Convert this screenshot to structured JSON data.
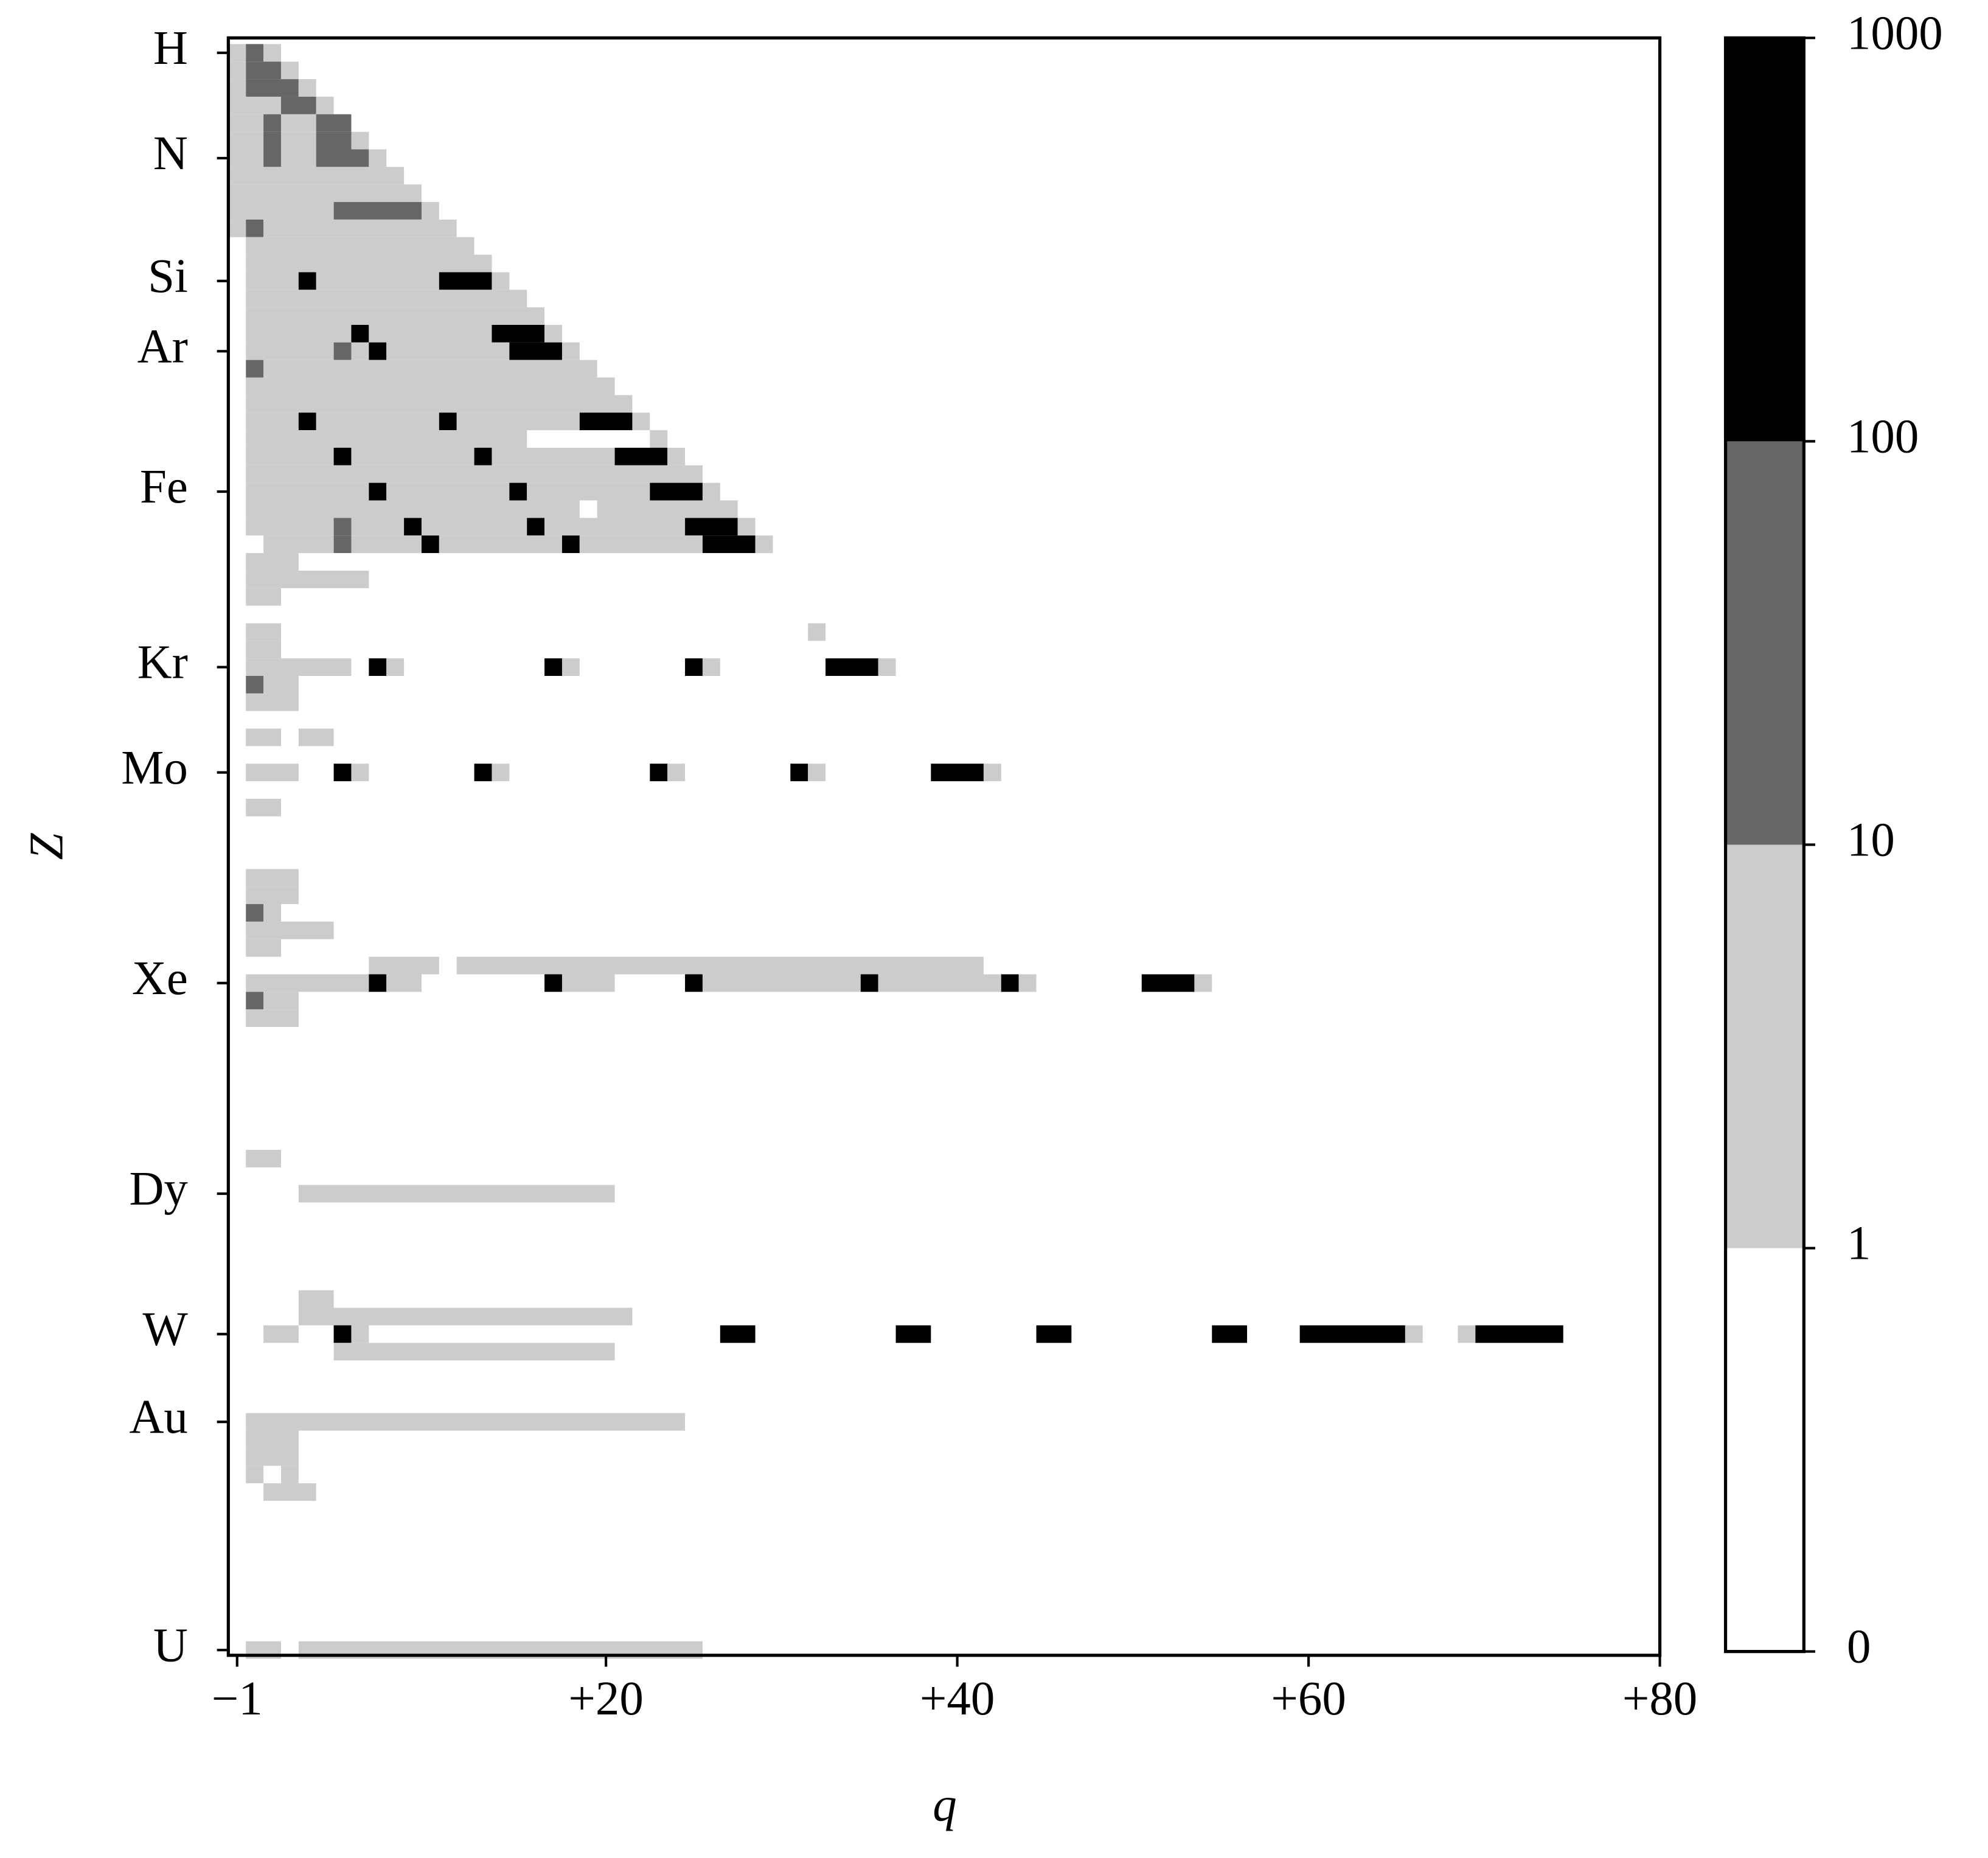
{
  "chart_data": {
    "type": "heatmap",
    "x_label": "q",
    "y_label": "Z",
    "xlim": [
      -1.5,
      80
    ],
    "ylim": [
      0.15,
      92.3
    ],
    "y_inverted": true,
    "xticks": [
      {
        "value": -1,
        "label": "−1"
      },
      {
        "value": 20,
        "label": "+20"
      },
      {
        "value": 40,
        "label": "+40"
      },
      {
        "value": 60,
        "label": "+60"
      },
      {
        "value": 80,
        "label": "+80"
      }
    ],
    "yticks": [
      {
        "value": 1,
        "label": "H"
      },
      {
        "value": 7,
        "label": "N"
      },
      {
        "value": 14,
        "label": "Si"
      },
      {
        "value": 18,
        "label": "Ar"
      },
      {
        "value": 26,
        "label": "Fe"
      },
      {
        "value": 36,
        "label": "Kr"
      },
      {
        "value": 42,
        "label": "Mo"
      },
      {
        "value": 54,
        "label": "Xe"
      },
      {
        "value": 66,
        "label": "Dy"
      },
      {
        "value": 74,
        "label": "W"
      },
      {
        "value": 79,
        "label": "Au"
      },
      {
        "value": 92,
        "label": "U"
      }
    ],
    "colorbar": {
      "boundaries": [
        0,
        1,
        10,
        100,
        1000
      ],
      "colors": [
        "#ffffff",
        "#cccccc",
        "#666666",
        "#000000"
      ]
    },
    "rows": [
      {
        "z": 1,
        "runs": [
          [
            -1,
            -1,
            5
          ],
          [
            0,
            0,
            50
          ],
          [
            1,
            1,
            5
          ]
        ]
      },
      {
        "z": 2,
        "runs": [
          [
            -1,
            -1,
            5
          ],
          [
            0,
            1,
            50
          ],
          [
            2,
            2,
            5
          ]
        ]
      },
      {
        "z": 3,
        "runs": [
          [
            -1,
            -1,
            5
          ],
          [
            0,
            2,
            50
          ],
          [
            3,
            3,
            5
          ]
        ]
      },
      {
        "z": 4,
        "runs": [
          [
            -1,
            1,
            5
          ],
          [
            2,
            3,
            50
          ],
          [
            4,
            4,
            5
          ]
        ]
      },
      {
        "z": 5,
        "runs": [
          [
            -1,
            0,
            5
          ],
          [
            1,
            1,
            50
          ],
          [
            2,
            3,
            5
          ],
          [
            4,
            5,
            50
          ]
        ]
      },
      {
        "z": 6,
        "runs": [
          [
            -1,
            0,
            5
          ],
          [
            1,
            1,
            50
          ],
          [
            2,
            3,
            5
          ],
          [
            4,
            5,
            50
          ],
          [
            6,
            6,
            5
          ]
        ]
      },
      {
        "z": 7,
        "runs": [
          [
            -1,
            0,
            5
          ],
          [
            1,
            1,
            50
          ],
          [
            2,
            3,
            5
          ],
          [
            4,
            6,
            50
          ],
          [
            7,
            7,
            5
          ]
        ]
      },
      {
        "z": 8,
        "runs": [
          [
            -1,
            8,
            5
          ]
        ]
      },
      {
        "z": 9,
        "runs": [
          [
            -1,
            9,
            5
          ]
        ]
      },
      {
        "z": 10,
        "runs": [
          [
            -1,
            4,
            5
          ],
          [
            5,
            9,
            50
          ],
          [
            10,
            10,
            5
          ]
        ]
      },
      {
        "z": 11,
        "runs": [
          [
            -1,
            -1,
            5
          ],
          [
            0,
            0,
            50
          ],
          [
            1,
            11,
            5
          ]
        ]
      },
      {
        "z": 12,
        "runs": [
          [
            0,
            12,
            5
          ]
        ]
      },
      {
        "z": 13,
        "runs": [
          [
            0,
            13,
            5
          ]
        ]
      },
      {
        "z": 14,
        "runs": [
          [
            0,
            2,
            5
          ],
          [
            3,
            3,
            500
          ],
          [
            4,
            10,
            5
          ],
          [
            11,
            13,
            500
          ],
          [
            14,
            14,
            5
          ]
        ]
      },
      {
        "z": 15,
        "runs": [
          [
            0,
            15,
            5
          ]
        ]
      },
      {
        "z": 16,
        "runs": [
          [
            0,
            16,
            5
          ]
        ]
      },
      {
        "z": 17,
        "runs": [
          [
            0,
            5,
            5
          ],
          [
            6,
            6,
            500
          ],
          [
            7,
            13,
            5
          ],
          [
            14,
            16,
            500
          ],
          [
            17,
            17,
            5
          ]
        ]
      },
      {
        "z": 18,
        "runs": [
          [
            0,
            4,
            5
          ],
          [
            5,
            5,
            50
          ],
          [
            6,
            6,
            5
          ],
          [
            7,
            7,
            500
          ],
          [
            8,
            14,
            5
          ],
          [
            15,
            17,
            500
          ],
          [
            18,
            18,
            5
          ]
        ]
      },
      {
        "z": 19,
        "runs": [
          [
            0,
            0,
            50
          ],
          [
            1,
            19,
            5
          ]
        ]
      },
      {
        "z": 20,
        "runs": [
          [
            0,
            20,
            5
          ]
        ]
      },
      {
        "z": 21,
        "runs": [
          [
            0,
            21,
            5
          ]
        ]
      },
      {
        "z": 22,
        "runs": [
          [
            0,
            2,
            5
          ],
          [
            3,
            3,
            500
          ],
          [
            4,
            10,
            5
          ],
          [
            11,
            11,
            500
          ],
          [
            12,
            18,
            5
          ],
          [
            19,
            21,
            500
          ],
          [
            22,
            22,
            5
          ]
        ]
      },
      {
        "z": 23,
        "runs": [
          [
            0,
            15,
            5
          ],
          [
            23,
            23,
            5
          ]
        ]
      },
      {
        "z": 24,
        "runs": [
          [
            0,
            4,
            5
          ],
          [
            5,
            5,
            500
          ],
          [
            6,
            12,
            5
          ],
          [
            13,
            13,
            500
          ],
          [
            14,
            20,
            5
          ],
          [
            21,
            23,
            500
          ],
          [
            24,
            24,
            5
          ]
        ]
      },
      {
        "z": 25,
        "runs": [
          [
            0,
            25,
            5
          ]
        ]
      },
      {
        "z": 26,
        "runs": [
          [
            0,
            6,
            5
          ],
          [
            7,
            7,
            500
          ],
          [
            8,
            14,
            5
          ],
          [
            15,
            15,
            500
          ],
          [
            16,
            22,
            5
          ],
          [
            23,
            25,
            500
          ],
          [
            26,
            26,
            5
          ]
        ]
      },
      {
        "z": 27,
        "runs": [
          [
            0,
            18,
            5
          ],
          [
            20,
            27,
            5
          ]
        ]
      },
      {
        "z": 28,
        "runs": [
          [
            0,
            4,
            5
          ],
          [
            5,
            5,
            50
          ],
          [
            6,
            8,
            5
          ],
          [
            9,
            9,
            500
          ],
          [
            10,
            15,
            5
          ],
          [
            16,
            16,
            500
          ],
          [
            17,
            24,
            5
          ],
          [
            25,
            27,
            500
          ],
          [
            28,
            28,
            5
          ]
        ]
      },
      {
        "z": 29,
        "runs": [
          [
            1,
            4,
            5
          ],
          [
            5,
            5,
            50
          ],
          [
            6,
            9,
            5
          ],
          [
            10,
            10,
            500
          ],
          [
            11,
            17,
            5
          ],
          [
            18,
            18,
            500
          ],
          [
            19,
            25,
            5
          ],
          [
            26,
            28,
            500
          ],
          [
            29,
            29,
            5
          ]
        ]
      },
      {
        "z": 30,
        "runs": [
          [
            0,
            2,
            5
          ]
        ]
      },
      {
        "z": 31,
        "runs": [
          [
            0,
            6,
            5
          ]
        ]
      },
      {
        "z": 32,
        "runs": [
          [
            0,
            1,
            5
          ]
        ]
      },
      {
        "z": 34,
        "runs": [
          [
            0,
            1,
            5
          ],
          [
            32,
            32,
            5
          ]
        ]
      },
      {
        "z": 35,
        "runs": [
          [
            0,
            1,
            5
          ]
        ]
      },
      {
        "z": 36,
        "runs": [
          [
            0,
            5,
            5
          ],
          [
            7,
            7,
            500
          ],
          [
            8,
            8,
            5
          ],
          [
            17,
            17,
            500
          ],
          [
            18,
            18,
            5
          ],
          [
            25,
            25,
            500
          ],
          [
            26,
            26,
            5
          ],
          [
            33,
            35,
            500
          ],
          [
            36,
            36,
            5
          ]
        ]
      },
      {
        "z": 37,
        "runs": [
          [
            0,
            0,
            50
          ],
          [
            1,
            2,
            5
          ]
        ]
      },
      {
        "z": 38,
        "runs": [
          [
            0,
            2,
            5
          ]
        ]
      },
      {
        "z": 40,
        "runs": [
          [
            0,
            1,
            5
          ],
          [
            3,
            4,
            5
          ]
        ]
      },
      {
        "z": 42,
        "runs": [
          [
            0,
            2,
            5
          ],
          [
            5,
            5,
            500
          ],
          [
            6,
            6,
            5
          ],
          [
            13,
            13,
            500
          ],
          [
            14,
            14,
            5
          ],
          [
            23,
            23,
            500
          ],
          [
            24,
            24,
            5
          ],
          [
            31,
            31,
            500
          ],
          [
            32,
            32,
            5
          ],
          [
            39,
            41,
            500
          ],
          [
            42,
            42,
            5
          ]
        ]
      },
      {
        "z": 44,
        "runs": [
          [
            0,
            1,
            5
          ]
        ]
      },
      {
        "z": 48,
        "runs": [
          [
            0,
            2,
            5
          ]
        ]
      },
      {
        "z": 49,
        "runs": [
          [
            0,
            2,
            5
          ]
        ]
      },
      {
        "z": 50,
        "runs": [
          [
            0,
            0,
            50
          ],
          [
            1,
            1,
            5
          ]
        ]
      },
      {
        "z": 51,
        "runs": [
          [
            0,
            4,
            5
          ]
        ]
      },
      {
        "z": 52,
        "runs": [
          [
            0,
            1,
            5
          ]
        ]
      },
      {
        "z": 53,
        "runs": [
          [
            7,
            10,
            5
          ],
          [
            12,
            41,
            5
          ]
        ]
      },
      {
        "z": 54,
        "runs": [
          [
            0,
            6,
            5
          ],
          [
            7,
            7,
            500
          ],
          [
            8,
            9,
            5
          ],
          [
            17,
            17,
            500
          ],
          [
            18,
            20,
            5
          ],
          [
            25,
            25,
            500
          ],
          [
            26,
            34,
            5
          ],
          [
            35,
            35,
            500
          ],
          [
            36,
            42,
            5
          ],
          [
            43,
            43,
            500
          ],
          [
            44,
            44,
            5
          ],
          [
            51,
            53,
            500
          ],
          [
            54,
            54,
            5
          ]
        ]
      },
      {
        "z": 55,
        "runs": [
          [
            0,
            0,
            50
          ],
          [
            1,
            2,
            5
          ]
        ]
      },
      {
        "z": 56,
        "runs": [
          [
            0,
            2,
            5
          ]
        ]
      },
      {
        "z": 64,
        "runs": [
          [
            0,
            1,
            5
          ]
        ]
      },
      {
        "z": 66,
        "runs": [
          [
            3,
            20,
            5
          ]
        ]
      },
      {
        "z": 72,
        "runs": [
          [
            3,
            4,
            5
          ]
        ]
      },
      {
        "z": 73,
        "runs": [
          [
            3,
            21,
            5
          ]
        ]
      },
      {
        "z": 74,
        "runs": [
          [
            1,
            2,
            5
          ],
          [
            5,
            5,
            500
          ],
          [
            6,
            6,
            5
          ],
          [
            27,
            28,
            500
          ],
          [
            37,
            38,
            500
          ],
          [
            45,
            46,
            500
          ],
          [
            55,
            56,
            500
          ],
          [
            60,
            65,
            500
          ],
          [
            66,
            66,
            5
          ],
          [
            69,
            69,
            5
          ],
          [
            70,
            74,
            500
          ]
        ]
      },
      {
        "z": 75,
        "runs": [
          [
            5,
            20,
            5
          ]
        ]
      },
      {
        "z": 79,
        "runs": [
          [
            0,
            24,
            5
          ]
        ]
      },
      {
        "z": 80,
        "runs": [
          [
            0,
            2,
            5
          ]
        ]
      },
      {
        "z": 81,
        "runs": [
          [
            0,
            2,
            5
          ]
        ]
      },
      {
        "z": 82,
        "runs": [
          [
            0,
            0,
            5
          ],
          [
            2,
            2,
            5
          ]
        ]
      },
      {
        "z": 83,
        "runs": [
          [
            1,
            3,
            5
          ]
        ]
      },
      {
        "z": 92,
        "runs": [
          [
            0,
            1,
            5
          ],
          [
            3,
            25,
            5
          ]
        ]
      }
    ]
  }
}
